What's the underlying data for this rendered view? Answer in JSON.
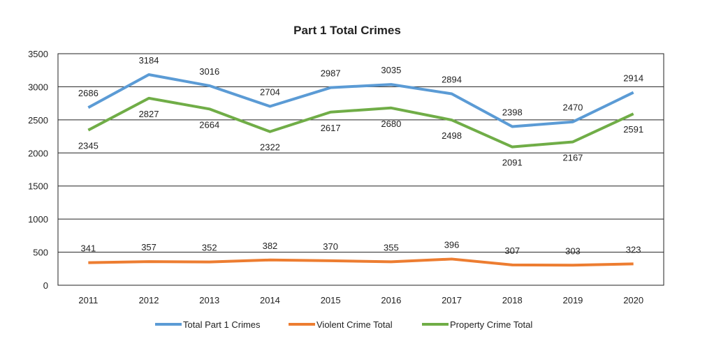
{
  "chart_data": {
    "type": "line",
    "title": "Part 1 Total Crimes",
    "xlabel": "",
    "ylabel": "",
    "categories": [
      "2011",
      "2012",
      "2013",
      "2014",
      "2015",
      "2016",
      "2017",
      "2018",
      "2019",
      "2020"
    ],
    "ylim": [
      0,
      3500
    ],
    "yticks": [
      0,
      500,
      1000,
      1500,
      2000,
      2500,
      3000,
      3500
    ],
    "grid": true,
    "legend_position": "bottom",
    "series": [
      {
        "name": "Total Part 1 Crimes",
        "color": "#5b9bd5",
        "label_side": "above",
        "values": [
          2686,
          3184,
          3016,
          2704,
          2987,
          3035,
          2894,
          2398,
          2470,
          2914
        ]
      },
      {
        "name": "Violent Crime Total",
        "color": "#ed7d31",
        "label_side": "above",
        "values": [
          341,
          357,
          352,
          382,
          370,
          355,
          396,
          307,
          303,
          323
        ]
      },
      {
        "name": "Property Crime Total",
        "color": "#70ad47",
        "label_side": "below",
        "values": [
          2345,
          2827,
          2664,
          2322,
          2617,
          2680,
          2498,
          2091,
          2167,
          2591
        ]
      }
    ]
  }
}
